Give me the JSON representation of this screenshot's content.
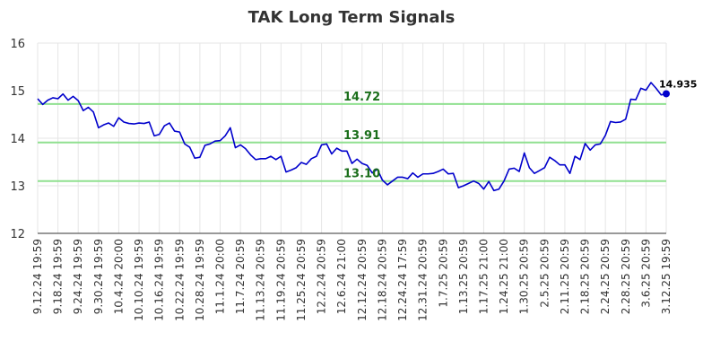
{
  "chart_data": {
    "type": "line",
    "title": "TAK Long Term Signals",
    "xlabel": "",
    "ylabel": "",
    "ylim": [
      12,
      16
    ],
    "yticks": [
      "12",
      "13",
      "14",
      "15",
      "16"
    ],
    "grid": true,
    "x_tick_labels": [
      "9.12.24 19:59",
      "9.18.24 19:59",
      "9.24.24 19:59",
      "9.30.24 19:59",
      "10.4.24 20:00",
      "10.10.24 19:59",
      "10.16.24 19:59",
      "10.22.24 19:59",
      "10.28.24 19:59",
      "11.1.24 20:00",
      "11.7.24 20:59",
      "11.13.24 20:59",
      "11.19.24 20:59",
      "11.25.24 20:59",
      "12.2.24 20:59",
      "12.6.24 21:00",
      "12.12.24 20:59",
      "12.18.24 20:59",
      "12.24.24 17:59",
      "12.31.24 20:59",
      "1.7.25 20:59",
      "1.13.25 20:59",
      "1.17.25 21:00",
      "1.24.25 21:00",
      "1.30.25 20:59",
      "2.5.25 20:59",
      "2.11.25 20:59",
      "2.18.25 20:59",
      "2.24.25 20:59",
      "2.28.25 20:59",
      "3.6.25 20:59",
      "3.12.25 19:59"
    ],
    "series": [
      {
        "color": "#0000cc",
        "values": [
          14.83,
          14.71,
          14.8,
          14.85,
          14.83,
          14.93,
          14.8,
          14.88,
          14.79,
          14.58,
          14.65,
          14.55,
          14.22,
          14.28,
          14.32,
          14.25,
          14.43,
          14.34,
          14.31,
          14.3,
          14.32,
          14.31,
          14.34,
          14.05,
          14.08,
          14.26,
          14.32,
          14.15,
          14.13,
          13.88,
          13.81,
          13.58,
          13.6,
          13.85,
          13.88,
          13.94,
          13.95,
          14.05,
          14.22,
          13.8,
          13.86,
          13.78,
          13.65,
          13.55,
          13.57,
          13.57,
          13.62,
          13.55,
          13.62,
          13.29,
          13.33,
          13.38,
          13.49,
          13.45,
          13.57,
          13.62,
          13.86,
          13.88,
          13.67,
          13.79,
          13.73,
          13.73,
          13.47,
          13.56,
          13.47,
          13.43,
          13.27,
          13.35,
          13.12,
          13.02,
          13.1,
          13.18,
          13.18,
          13.15,
          13.27,
          13.18,
          13.25,
          13.25,
          13.26,
          13.3,
          13.35,
          13.25,
          13.26,
          12.96,
          13.0,
          13.05,
          13.1,
          13.05,
          12.93,
          13.09,
          12.9,
          12.93,
          13.1,
          13.35,
          13.37,
          13.3,
          13.69,
          13.38,
          13.26,
          13.32,
          13.38,
          13.6,
          13.53,
          13.44,
          13.44,
          13.26,
          13.62,
          13.55,
          13.89,
          13.75,
          13.86,
          13.88,
          14.06,
          14.35,
          14.33,
          14.34,
          14.4,
          14.82,
          14.81,
          15.05,
          15.01,
          15.17,
          15.05,
          14.91,
          14.935
        ]
      }
    ],
    "hlines": [
      {
        "value": 14.72,
        "label": "14.72",
        "color": "#90e090"
      },
      {
        "value": 13.91,
        "label": "13.91",
        "color": "#90e090"
      },
      {
        "value": 13.1,
        "label": "13.10",
        "color": "#90e090"
      }
    ],
    "last_point": {
      "value": 14.935,
      "label": "14.935"
    }
  }
}
